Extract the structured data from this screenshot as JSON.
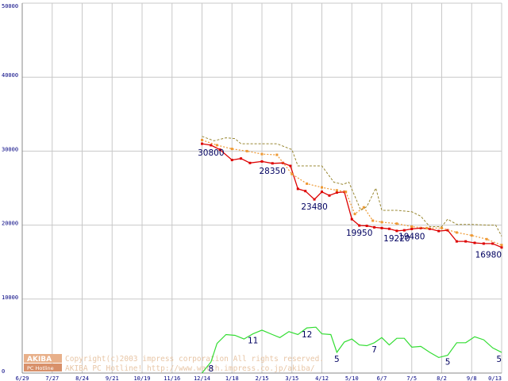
{
  "chart_data": {
    "type": "line",
    "x": [
      "6/29",
      "7/27",
      "8/24",
      "9/21",
      "10/19",
      "11/16",
      "12/14",
      "1/18",
      "2/15",
      "3/15",
      "4/12",
      "5/10",
      "6/7",
      "7/5",
      "8/2",
      "9/8",
      "0/13"
    ],
    "ylim": [
      0,
      50000
    ],
    "yticks": [
      "0",
      "10000",
      "20000",
      "30000",
      "40000",
      "50000"
    ],
    "grid": true,
    "series": [
      {
        "color": "#dd0000",
        "points": [
          [
            6.0,
            31000
          ],
          [
            6.3,
            30800
          ],
          [
            6.6,
            30200
          ],
          [
            7.0,
            28800
          ],
          [
            7.3,
            29000
          ],
          [
            7.6,
            28400
          ],
          [
            8.0,
            28600
          ],
          [
            8.35,
            28350
          ],
          [
            8.7,
            28400
          ],
          [
            8.95,
            28000
          ],
          [
            9.2,
            24900
          ],
          [
            9.45,
            24600
          ],
          [
            9.75,
            23480
          ],
          [
            10.0,
            24500
          ],
          [
            10.25,
            24000
          ],
          [
            10.5,
            24400
          ],
          [
            10.75,
            24500
          ],
          [
            11.0,
            20800
          ],
          [
            11.25,
            19950
          ],
          [
            11.5,
            19900
          ],
          [
            11.75,
            19700
          ],
          [
            12.0,
            19600
          ],
          [
            12.25,
            19500
          ],
          [
            12.5,
            19220
          ],
          [
            12.75,
            19300
          ],
          [
            13.0,
            19480
          ],
          [
            13.3,
            19600
          ],
          [
            13.6,
            19500
          ],
          [
            13.9,
            19200
          ],
          [
            14.2,
            19300
          ],
          [
            14.5,
            17800
          ],
          [
            14.8,
            17800
          ],
          [
            15.1,
            17600
          ],
          [
            15.4,
            17500
          ],
          [
            15.7,
            17500
          ],
          [
            16.0,
            16980
          ]
        ]
      },
      {
        "color": "#ee9933",
        "points": [
          [
            6.0,
            31500
          ],
          [
            6.5,
            30800
          ],
          [
            7.0,
            30300
          ],
          [
            7.5,
            30000
          ],
          [
            8.0,
            29600
          ],
          [
            8.5,
            29500
          ],
          [
            9.0,
            26900
          ],
          [
            9.5,
            25600
          ],
          [
            10.0,
            25100
          ],
          [
            10.5,
            24700
          ],
          [
            10.8,
            24500
          ],
          [
            11.1,
            21500
          ],
          [
            11.4,
            22400
          ],
          [
            11.7,
            20600
          ],
          [
            12.0,
            20400
          ],
          [
            12.5,
            20200
          ],
          [
            13.0,
            19800
          ],
          [
            13.5,
            19600
          ],
          [
            14.0,
            19600
          ],
          [
            14.5,
            19000
          ],
          [
            15.0,
            18600
          ],
          [
            15.5,
            18100
          ],
          [
            16.0,
            17300
          ]
        ]
      },
      {
        "color": "#998833",
        "dashed": true,
        "points": [
          [
            6.0,
            32000
          ],
          [
            6.4,
            31400
          ],
          [
            6.8,
            31800
          ],
          [
            7.1,
            31700
          ],
          [
            7.3,
            31000
          ],
          [
            8.0,
            31000
          ],
          [
            8.5,
            31000
          ],
          [
            9.0,
            30200
          ],
          [
            9.2,
            28000
          ],
          [
            9.5,
            28000
          ],
          [
            10.0,
            28000
          ],
          [
            10.4,
            25800
          ],
          [
            10.7,
            25500
          ],
          [
            10.9,
            25800
          ],
          [
            11.3,
            22000
          ],
          [
            11.5,
            22500
          ],
          [
            11.8,
            25000
          ],
          [
            12.0,
            22000
          ],
          [
            12.5,
            22000
          ],
          [
            13.0,
            21800
          ],
          [
            13.3,
            21200
          ],
          [
            13.6,
            19800
          ],
          [
            14.0,
            19800
          ],
          [
            14.2,
            20800
          ],
          [
            14.5,
            20100
          ],
          [
            15.0,
            20100
          ],
          [
            15.5,
            20000
          ],
          [
            15.8,
            20000
          ],
          [
            16.0,
            18500
          ]
        ]
      },
      {
        "color": "#33dd33",
        "points": [
          [
            6.0,
            0
          ],
          [
            6.3,
            1500
          ],
          [
            6.5,
            4000
          ],
          [
            6.8,
            5200
          ],
          [
            7.1,
            5100
          ],
          [
            7.4,
            4600
          ],
          [
            7.7,
            5300
          ],
          [
            8.0,
            5800
          ],
          [
            8.35,
            5200
          ],
          [
            8.6,
            4800
          ],
          [
            8.9,
            5600
          ],
          [
            9.2,
            5200
          ],
          [
            9.5,
            6100
          ],
          [
            9.8,
            6200
          ],
          [
            10.0,
            5300
          ],
          [
            10.3,
            5200
          ],
          [
            10.5,
            2800
          ],
          [
            10.75,
            4200
          ],
          [
            11.0,
            4600
          ],
          [
            11.25,
            3800
          ],
          [
            11.5,
            3700
          ],
          [
            11.75,
            4100
          ],
          [
            12.0,
            4800
          ],
          [
            12.25,
            3800
          ],
          [
            12.5,
            4700
          ],
          [
            12.75,
            4700
          ],
          [
            13.0,
            3500
          ],
          [
            13.3,
            3600
          ],
          [
            13.6,
            2800
          ],
          [
            13.9,
            2100
          ],
          [
            14.2,
            2400
          ],
          [
            14.5,
            4100
          ],
          [
            14.8,
            4100
          ],
          [
            15.1,
            4900
          ],
          [
            15.4,
            4500
          ],
          [
            15.7,
            3400
          ],
          [
            16.0,
            2800
          ]
        ]
      }
    ],
    "annotations": [
      {
        "text": "30800",
        "x": 6.3,
        "y": 30800
      },
      {
        "text": "28350",
        "x": 8.35,
        "y": 28350
      },
      {
        "text": "23480",
        "x": 9.75,
        "y": 23480
      },
      {
        "text": "19950",
        "x": 11.25,
        "y": 19950
      },
      {
        "text": "19220",
        "x": 12.5,
        "y": 19220
      },
      {
        "text": "19480",
        "x": 13.0,
        "y": 19480
      },
      {
        "text": "16980",
        "x": 16.0,
        "y": 16980
      },
      {
        "text": "8",
        "x": 6.3,
        "y": 1500
      },
      {
        "text": "11",
        "x": 7.7,
        "y": 5300
      },
      {
        "text": "12",
        "x": 9.5,
        "y": 6100
      },
      {
        "text": "5",
        "x": 10.5,
        "y": 2800
      },
      {
        "text": "7",
        "x": 11.75,
        "y": 4100
      },
      {
        "text": "5",
        "x": 14.2,
        "y": 2400
      },
      {
        "text": "5",
        "x": 16.0,
        "y": 2800
      }
    ]
  },
  "watermark": {
    "logo_top": "AKIBA",
    "logo_bottom": "PC Hotline",
    "line1": "Copyright(c)2003 impress corporation All rights reserved.",
    "line2": "AKIBA PC Hotline!  http://www.watch.impress.co.jp/akiba/"
  }
}
